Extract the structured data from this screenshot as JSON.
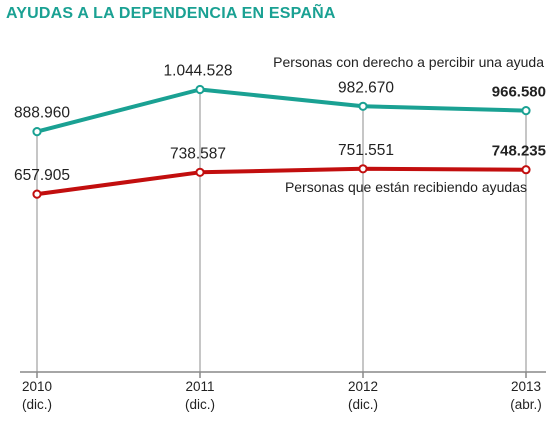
{
  "title": "AYUDAS A LA DEPENDENCIA EN ESPAÑA",
  "colors": {
    "title": "#1aa193",
    "series_1": "#1aa193",
    "series_2": "#c20e0e",
    "guide": "#b3b3b3",
    "axis": "#888888",
    "text": "#222222"
  },
  "chart_data": {
    "type": "line",
    "title": "AYUDAS A LA DEPENDENCIA EN ESPAÑA",
    "x": [
      "2010 (dic.)",
      "2011 (dic.)",
      "2012 (dic.)",
      "2013 (abr.)"
    ],
    "x_tick_labels": [
      {
        "year": "2010",
        "sub": "(dic.)"
      },
      {
        "year": "2011",
        "sub": "(dic.)"
      },
      {
        "year": "2012",
        "sub": "(dic.)"
      },
      {
        "year": "2013",
        "sub": "(abr.)"
      }
    ],
    "series": [
      {
        "name": "Personas con derecho a percibir una ayuda",
        "values": [
          888960,
          1044528,
          982670,
          966580
        ],
        "value_labels": [
          "888.960",
          "1.044.528",
          "982.670",
          "966.580"
        ],
        "color": "#1aa193"
      },
      {
        "name": "Personas que están recibiendo ayudas",
        "values": [
          657905,
          738587,
          751551,
          748235
        ],
        "value_labels": [
          "657.905",
          "738.587",
          "751.551",
          "748.235"
        ],
        "color": "#c20e0e"
      }
    ],
    "ylim": [
      0,
      1150000
    ],
    "grid": false,
    "legend": "inline labels next to lines",
    "xlabel": "",
    "ylabel": ""
  }
}
